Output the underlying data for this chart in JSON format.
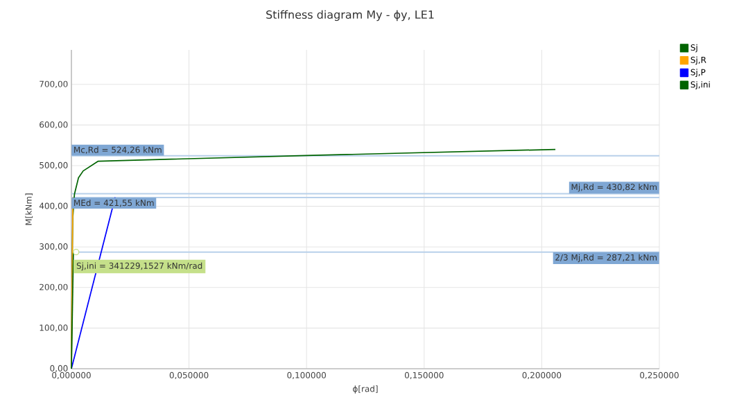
{
  "chart_data": {
    "type": "line",
    "title": "Stiffness diagram My - ϕy, LE1",
    "xlabel": "ϕ[rad]",
    "ylabel": "M[kNm]",
    "xlim": [
      0,
      0.25
    ],
    "ylim": [
      0,
      785
    ],
    "xticks": [
      {
        "value": 0,
        "label": "0,000000"
      },
      {
        "value": 0.05,
        "label": "0,050000"
      },
      {
        "value": 0.1,
        "label": "0,100000"
      },
      {
        "value": 0.15,
        "label": "0,150000"
      },
      {
        "value": 0.2,
        "label": "0,200000"
      },
      {
        "value": 0.25,
        "label": "0,250000"
      }
    ],
    "yticks": [
      {
        "value": 0,
        "label": "0,00"
      },
      {
        "value": 100,
        "label": "100,00"
      },
      {
        "value": 200,
        "label": "200,00"
      },
      {
        "value": 300,
        "label": "300,00"
      },
      {
        "value": 400,
        "label": "400,00"
      },
      {
        "value": 500,
        "label": "500,00"
      },
      {
        "value": 600,
        "label": "600,00"
      },
      {
        "value": 700,
        "label": "700,00"
      }
    ],
    "series": [
      {
        "name": "Sj",
        "color": "#006400",
        "x": [
          0,
          0.0003,
          0.0006,
          0.0013,
          0.003,
          0.005,
          0.0114,
          0.1,
          0.2058
        ],
        "values": [
          0,
          250,
          374,
          430,
          470,
          487,
          511,
          525,
          540
        ]
      },
      {
        "name": "Sj,R",
        "color": "#ffa500",
        "x": [
          0,
          0.0006
        ],
        "values": [
          0,
          422
        ]
      },
      {
        "name": "Sj,P",
        "color": "#0000ff",
        "x": [
          0,
          0.0186
        ],
        "values": [
          0,
          422
        ]
      },
      {
        "name": "Sj,ini",
        "color": "#006400",
        "x": [
          0,
          0.00084
        ],
        "values": [
          0,
          287
        ]
      }
    ],
    "ref_lines": [
      {
        "axis": "y",
        "value": 524.26,
        "label": "Mc,Rd = 524,26 kNm",
        "color": "#b8d0ea"
      },
      {
        "axis": "y",
        "value": 421.55,
        "label": "MEd = 421,55 kNm",
        "color": "#b8d0ea"
      },
      {
        "axis": "y",
        "value": 430.82,
        "label": "Mj,Rd = 430,82 kNm",
        "color": "#b8d0ea"
      },
      {
        "axis": "y",
        "value": 287.21,
        "label": "2/3 Mj,Rd = 287,21 kNm",
        "color": "#b8d0ea"
      }
    ],
    "annotations": [
      {
        "text": "Sj,ini = 341229,1527 kNm/rad",
        "x": 0.002,
        "y": 287.21
      }
    ],
    "grid": true,
    "legend": "top right",
    "marker": "none",
    "line_style": "solid"
  }
}
